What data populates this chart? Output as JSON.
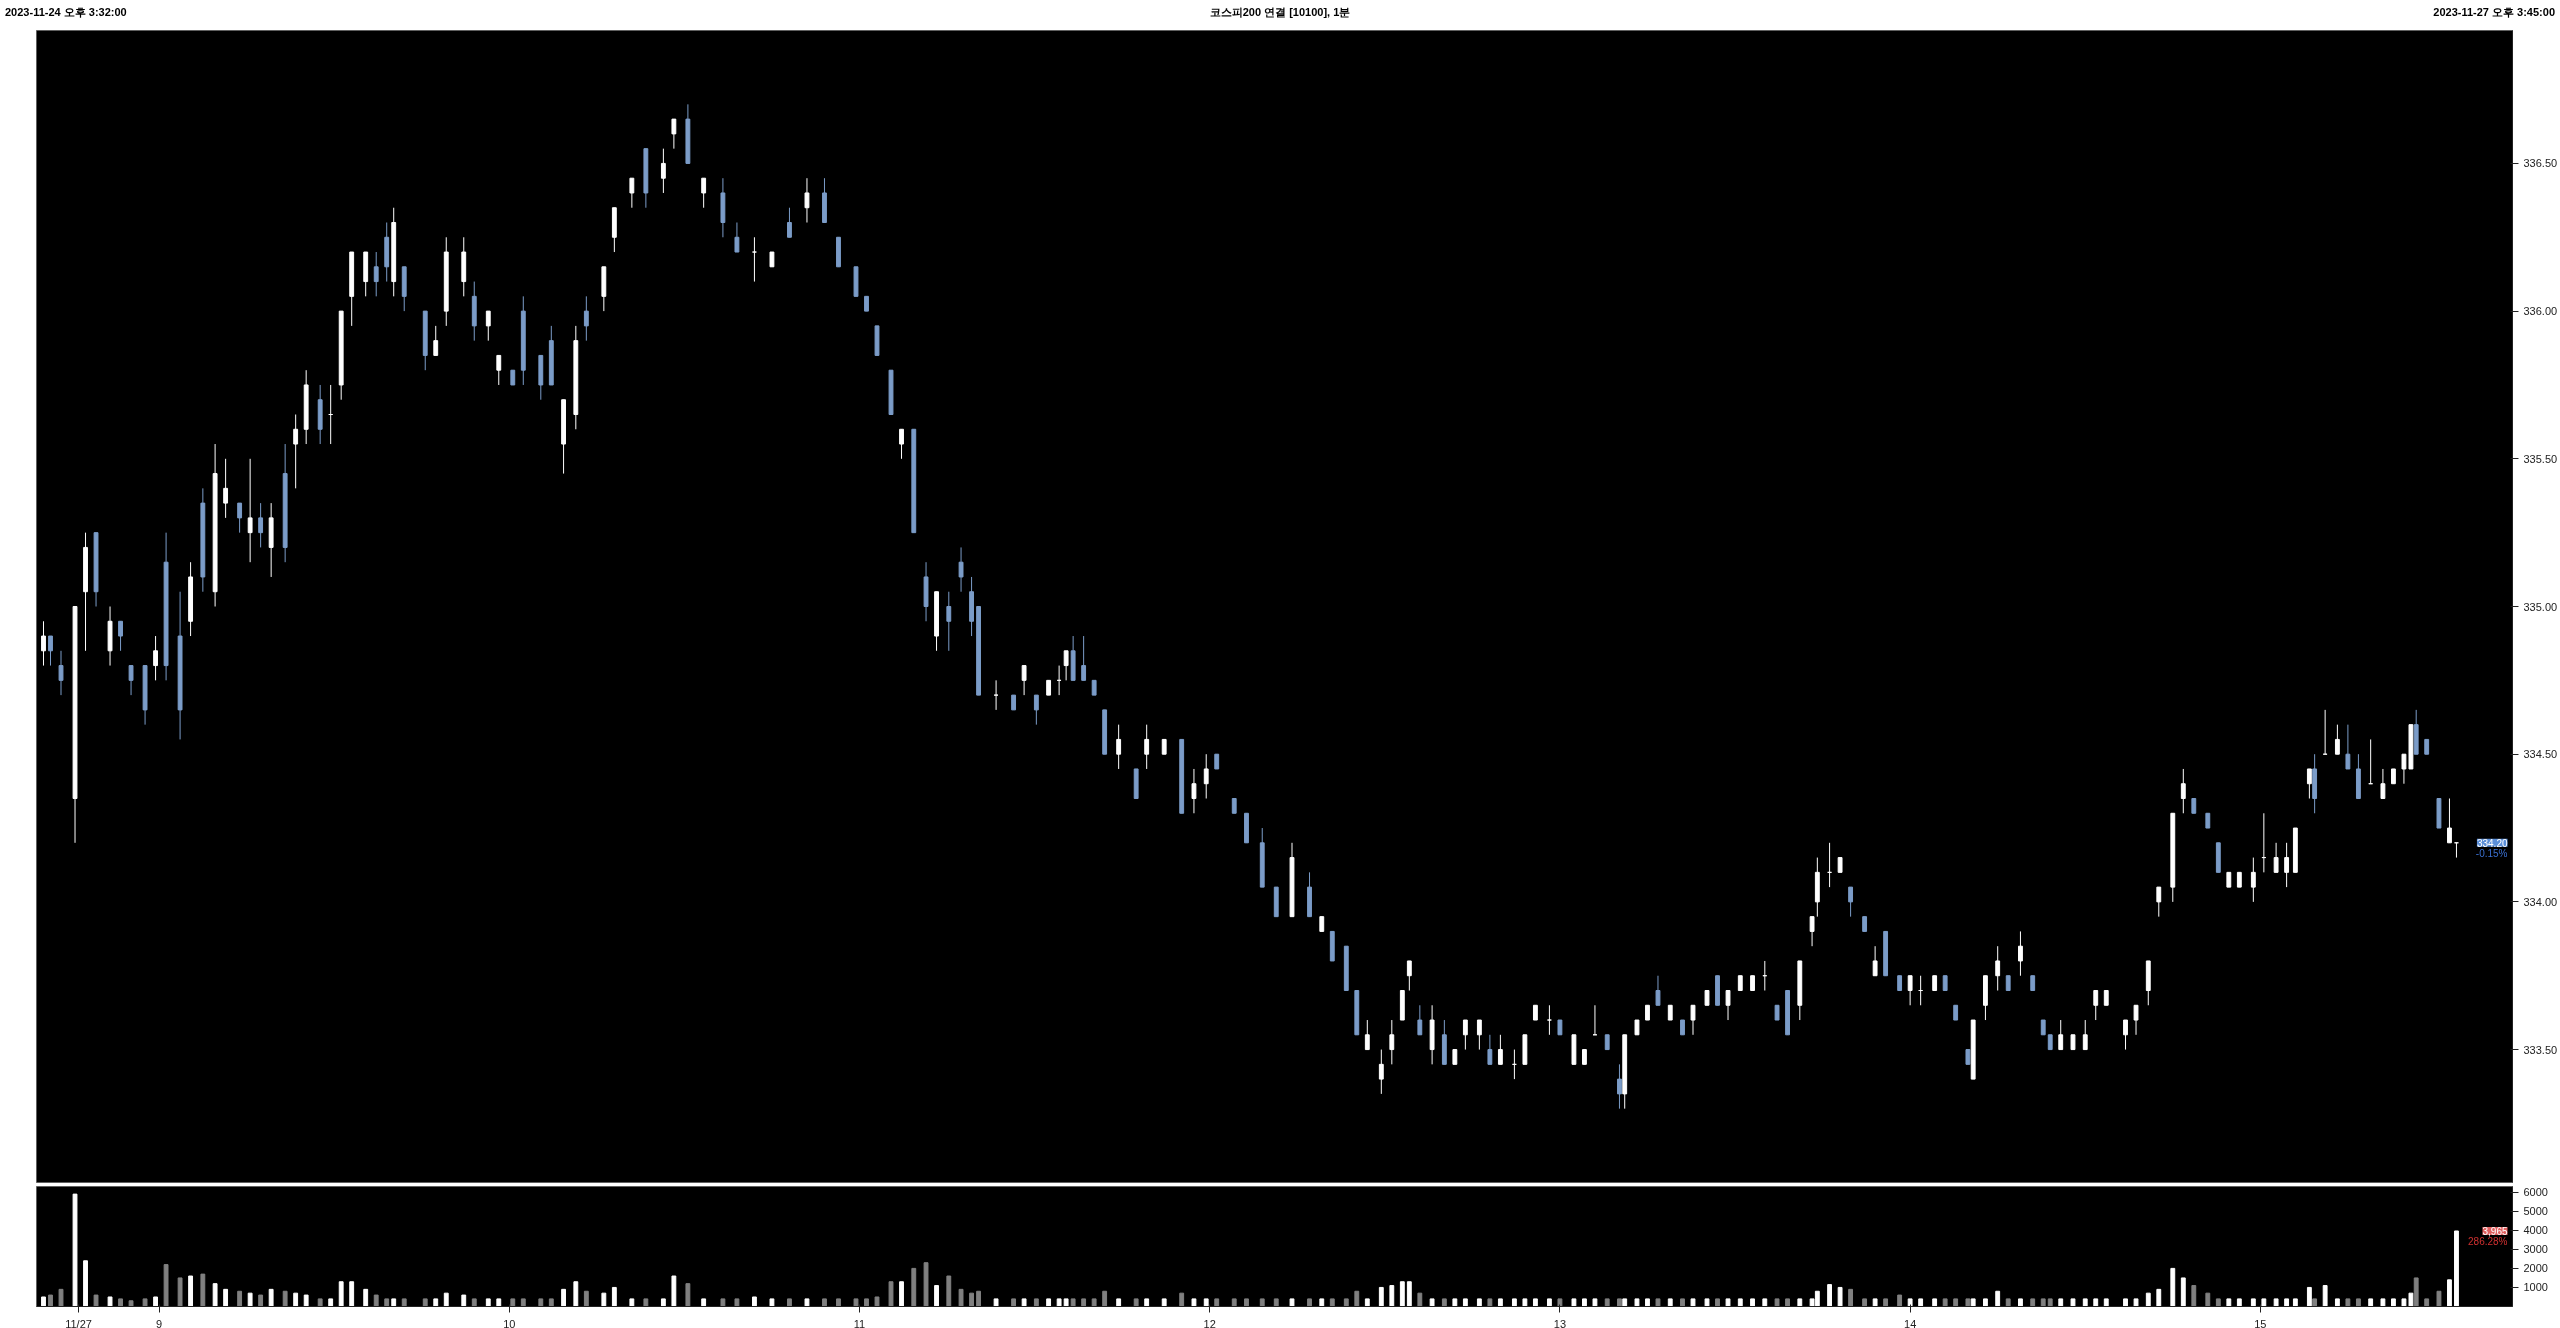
{
  "chart_data": [
    {
      "type": "candlestick",
      "title": "코스피200 연결 [10100], 1분",
      "annotations": [
        "2023-11-24 오후 3:32:00",
        "2023-11-27 오후 3:45:00",
        "334.20",
        "-0.15%"
      ],
      "xlim": [
        8.65,
        15.72
      ],
      "ylim": [
        333.05,
        336.95
      ],
      "yticks": [
        {
          "value": 333.5,
          "label": "333.50"
        },
        {
          "value": 334.0,
          "label": "334.00"
        },
        {
          "value": 334.5,
          "label": "334.50"
        },
        {
          "value": 335.0,
          "label": "335.00"
        },
        {
          "value": 335.5,
          "label": "335.50"
        },
        {
          "value": 336.0,
          "label": "336.00"
        },
        {
          "value": 336.5,
          "label": "336.50"
        }
      ],
      "tick_labels": "y",
      "x": [
        8.67,
        8.69,
        8.72,
        8.76,
        8.79,
        8.82,
        8.86,
        8.89,
        8.92,
        8.96,
        8.99,
        9.02,
        9.06,
        9.09,
        9.125,
        9.16,
        9.19,
        9.23,
        9.26,
        9.29,
        9.32,
        9.36,
        9.39,
        9.42,
        9.46,
        9.49,
        9.52,
        9.55,
        9.59,
        9.62,
        9.65,
        9.67,
        9.7,
        9.76,
        9.79,
        9.82,
        9.87,
        9.9,
        9.94,
        9.97,
        10.01,
        10.04,
        10.09,
        10.12,
        10.155,
        10.19,
        10.22,
        10.27,
        10.3,
        10.35,
        10.39,
        10.44,
        10.47,
        10.51,
        10.555,
        10.61,
        10.65,
        10.7,
        10.75,
        10.8,
        10.85,
        10.9,
        10.94,
        10.99,
        11.02,
        11.05,
        11.09,
        11.12,
        11.155,
        11.19,
        11.22,
        11.255,
        11.29,
        11.32,
        11.34,
        11.39,
        11.44,
        11.47,
        11.505,
        11.54,
        11.57,
        11.59,
        11.61,
        11.64,
        11.67,
        11.7,
        11.74,
        11.79,
        11.82,
        11.87,
        11.92,
        11.955,
        11.99,
        12.02,
        12.07,
        12.105,
        12.15,
        12.19,
        12.235,
        12.285,
        12.32,
        12.35,
        12.39,
        12.42,
        12.45,
        12.49,
        12.52,
        12.55,
        12.57,
        12.6,
        12.635,
        12.67,
        12.7,
        12.73,
        12.77,
        12.8,
        12.83,
        12.87,
        12.9,
        12.93,
        12.97,
        13.0,
        13.04,
        13.07,
        13.1,
        13.135,
        13.17,
        13.185,
        13.22,
        13.25,
        13.28,
        13.315,
        13.35,
        13.38,
        13.42,
        13.45,
        13.48,
        13.515,
        13.55,
        13.585,
        13.62,
        13.65,
        13.685,
        13.72,
        13.735,
        13.77,
        13.8,
        13.83,
        13.87,
        13.9,
        13.93,
        13.97,
        14.0,
        14.03,
        14.07,
        14.1,
        14.13,
        14.165,
        14.18,
        14.215,
        14.25,
        14.28,
        14.315,
        14.35,
        14.38,
        14.4,
        14.43,
        14.465,
        14.5,
        14.53,
        14.56,
        14.615,
        14.645,
        14.68,
        14.71,
        14.75,
        14.78,
        14.81,
        14.85,
        14.88,
        14.91,
        14.94,
        14.98,
        15.01,
        15.045,
        15.075,
        15.1,
        15.14,
        15.155,
        15.185,
        15.22,
        15.25,
        15.28,
        15.315,
        15.35,
        15.38,
        15.41,
        15.43,
        15.445,
        15.475,
        15.51,
        15.54,
        15.56
      ],
      "ohlc": [
        [
          334.85,
          334.95,
          334.8,
          334.9
        ],
        [
          334.9,
          334.9,
          334.8,
          334.85
        ],
        [
          334.8,
          334.85,
          334.7,
          334.75
        ],
        [
          334.35,
          335.0,
          334.2,
          335.0
        ],
        [
          335.05,
          335.25,
          334.85,
          335.2
        ],
        [
          335.25,
          335.25,
          335.0,
          335.05
        ],
        [
          334.85,
          335.0,
          334.8,
          334.95
        ],
        [
          334.95,
          334.95,
          334.85,
          334.9
        ],
        [
          334.8,
          334.8,
          334.7,
          334.75
        ],
        [
          334.8,
          334.8,
          334.6,
          334.65
        ],
        [
          334.8,
          334.9,
          334.75,
          334.85
        ],
        [
          335.15,
          335.25,
          334.75,
          334.8
        ],
        [
          334.9,
          335.05,
          334.55,
          334.65
        ],
        [
          334.95,
          335.15,
          334.9,
          335.1
        ],
        [
          335.35,
          335.4,
          335.05,
          335.1
        ],
        [
          335.05,
          335.55,
          335.0,
          335.45
        ],
        [
          335.35,
          335.5,
          335.3,
          335.4
        ],
        [
          335.35,
          335.35,
          335.25,
          335.3
        ],
        [
          335.25,
          335.5,
          335.15,
          335.3
        ],
        [
          335.3,
          335.35,
          335.2,
          335.25
        ],
        [
          335.2,
          335.35,
          335.1,
          335.3
        ],
        [
          335.45,
          335.55,
          335.15,
          335.2
        ],
        [
          335.55,
          335.65,
          335.4,
          335.6
        ],
        [
          335.6,
          335.8,
          335.55,
          335.75
        ],
        [
          335.7,
          335.75,
          335.55,
          335.6
        ],
        [
          335.65,
          335.75,
          335.55,
          335.65
        ],
        [
          335.75,
          336.0,
          335.7,
          336.0
        ],
        [
          336.05,
          336.2,
          335.95,
          336.2
        ],
        [
          336.1,
          336.2,
          336.05,
          336.2
        ],
        [
          336.15,
          336.2,
          336.05,
          336.1
        ],
        [
          336.25,
          336.3,
          336.1,
          336.15
        ],
        [
          336.1,
          336.35,
          336.05,
          336.3
        ],
        [
          336.15,
          336.15,
          336.0,
          336.05
        ],
        [
          336.0,
          336.0,
          335.8,
          335.85
        ],
        [
          335.85,
          335.95,
          335.85,
          335.9
        ],
        [
          336.0,
          336.25,
          335.95,
          336.2
        ],
        [
          336.1,
          336.25,
          336.05,
          336.2
        ],
        [
          336.05,
          336.1,
          335.9,
          335.95
        ],
        [
          335.95,
          336.0,
          335.9,
          336.0
        ],
        [
          335.8,
          335.85,
          335.75,
          335.85
        ],
        [
          335.8,
          335.8,
          335.75,
          335.75
        ],
        [
          336.0,
          336.05,
          335.75,
          335.8
        ],
        [
          335.85,
          335.85,
          335.7,
          335.75
        ],
        [
          335.9,
          335.95,
          335.75,
          335.75
        ],
        [
          335.55,
          335.7,
          335.45,
          335.7
        ],
        [
          335.65,
          335.95,
          335.6,
          335.9
        ],
        [
          336.0,
          336.05,
          335.9,
          335.95
        ],
        [
          336.05,
          336.15,
          336.0,
          336.15
        ],
        [
          336.25,
          336.35,
          336.2,
          336.35
        ],
        [
          336.4,
          336.45,
          336.35,
          336.45
        ],
        [
          336.55,
          336.55,
          336.35,
          336.4
        ],
        [
          336.45,
          336.55,
          336.4,
          336.5
        ],
        [
          336.6,
          336.65,
          336.55,
          336.65
        ],
        [
          336.65,
          336.7,
          336.5,
          336.5
        ],
        [
          336.4,
          336.45,
          336.35,
          336.45
        ],
        [
          336.4,
          336.45,
          336.25,
          336.3
        ],
        [
          336.25,
          336.3,
          336.2,
          336.2
        ],
        [
          336.2,
          336.25,
          336.1,
          336.2
        ],
        [
          336.15,
          336.2,
          336.15,
          336.2
        ],
        [
          336.3,
          336.35,
          336.25,
          336.25
        ],
        [
          336.35,
          336.45,
          336.3,
          336.4
        ],
        [
          336.4,
          336.45,
          336.3,
          336.3
        ],
        [
          336.25,
          336.25,
          336.15,
          336.15
        ],
        [
          336.15,
          336.15,
          336.05,
          336.05
        ],
        [
          336.05,
          336.05,
          336.0,
          336.0
        ],
        [
          335.95,
          335.95,
          335.85,
          335.85
        ],
        [
          335.8,
          335.8,
          335.65,
          335.65
        ],
        [
          335.55,
          335.6,
          335.5,
          335.6
        ],
        [
          335.6,
          335.6,
          335.25,
          335.25
        ],
        [
          335.1,
          335.15,
          334.95,
          335.0
        ],
        [
          334.9,
          335.05,
          334.85,
          335.05
        ],
        [
          335.0,
          335.05,
          334.85,
          334.95
        ],
        [
          335.15,
          335.2,
          335.05,
          335.1
        ],
        [
          335.05,
          335.1,
          334.9,
          334.95
        ],
        [
          335.0,
          335.0,
          334.7,
          334.7
        ],
        [
          334.7,
          334.75,
          334.65,
          334.7
        ],
        [
          334.7,
          334.7,
          334.65,
          334.65
        ],
        [
          334.75,
          334.8,
          334.7,
          334.8
        ],
        [
          334.7,
          334.7,
          334.6,
          334.65
        ],
        [
          334.7,
          334.75,
          334.7,
          334.75
        ],
        [
          334.75,
          334.8,
          334.7,
          334.75
        ],
        [
          334.8,
          334.85,
          334.75,
          334.85
        ],
        [
          334.85,
          334.9,
          334.75,
          334.75
        ],
        [
          334.8,
          334.9,
          334.75,
          334.75
        ],
        [
          334.75,
          334.75,
          334.7,
          334.7
        ],
        [
          334.65,
          334.65,
          334.5,
          334.5
        ],
        [
          334.5,
          334.6,
          334.45,
          334.55
        ],
        [
          334.45,
          334.45,
          334.35,
          334.35
        ],
        [
          334.5,
          334.6,
          334.45,
          334.55
        ],
        [
          334.5,
          334.55,
          334.5,
          334.55
        ],
        [
          334.55,
          334.55,
          334.3,
          334.3
        ],
        [
          334.35,
          334.45,
          334.3,
          334.4
        ],
        [
          334.4,
          334.5,
          334.35,
          334.45
        ],
        [
          334.5,
          334.5,
          334.45,
          334.45
        ],
        [
          334.35,
          334.35,
          334.3,
          334.3
        ],
        [
          334.3,
          334.3,
          334.2,
          334.2
        ],
        [
          334.2,
          334.25,
          334.05,
          334.05
        ],
        [
          334.05,
          334.05,
          333.95,
          333.95
        ],
        [
          333.95,
          334.2,
          333.95,
          334.15
        ],
        [
          334.05,
          334.1,
          333.95,
          333.95
        ],
        [
          333.9,
          333.95,
          333.9,
          333.95
        ],
        [
          333.9,
          333.9,
          333.8,
          333.8
        ],
        [
          333.85,
          333.85,
          333.7,
          333.7
        ],
        [
          333.7,
          333.7,
          333.55,
          333.55
        ],
        [
          333.5,
          333.6,
          333.5,
          333.55
        ],
        [
          333.4,
          333.5,
          333.35,
          333.45
        ],
        [
          333.5,
          333.6,
          333.45,
          333.55
        ],
        [
          333.6,
          333.7,
          333.6,
          333.7
        ],
        [
          333.75,
          333.8,
          333.7,
          333.8
        ],
        [
          333.6,
          333.65,
          333.55,
          333.55
        ],
        [
          333.5,
          333.65,
          333.45,
          333.6
        ],
        [
          333.55,
          333.6,
          333.45,
          333.45
        ],
        [
          333.45,
          333.5,
          333.45,
          333.5
        ],
        [
          333.55,
          333.6,
          333.5,
          333.6
        ],
        [
          333.55,
          333.6,
          333.5,
          333.6
        ],
        [
          333.5,
          333.55,
          333.45,
          333.45
        ],
        [
          333.45,
          333.55,
          333.45,
          333.5
        ],
        [
          333.45,
          333.5,
          333.4,
          333.45
        ],
        [
          333.45,
          333.55,
          333.45,
          333.55
        ],
        [
          333.6,
          333.65,
          333.6,
          333.65
        ],
        [
          333.6,
          333.65,
          333.55,
          333.6
        ],
        [
          333.6,
          333.6,
          333.55,
          333.55
        ],
        [
          333.45,
          333.55,
          333.45,
          333.55
        ],
        [
          333.45,
          333.5,
          333.45,
          333.5
        ],
        [
          333.55,
          333.65,
          333.55,
          333.55
        ],
        [
          333.55,
          333.55,
          333.5,
          333.5
        ],
        [
          333.4,
          333.45,
          333.3,
          333.35
        ],
        [
          333.35,
          333.55,
          333.3,
          333.55
        ],
        [
          333.55,
          333.6,
          333.55,
          333.6
        ],
        [
          333.6,
          333.65,
          333.6,
          333.65
        ],
        [
          333.7,
          333.75,
          333.65,
          333.65
        ],
        [
          333.6,
          333.65,
          333.6,
          333.65
        ],
        [
          333.6,
          333.6,
          333.55,
          333.55
        ],
        [
          333.6,
          333.65,
          333.55,
          333.65
        ],
        [
          333.65,
          333.7,
          333.65,
          333.7
        ],
        [
          333.75,
          333.75,
          333.65,
          333.65
        ],
        [
          333.65,
          333.7,
          333.6,
          333.7
        ],
        [
          333.7,
          333.75,
          333.7,
          333.75
        ],
        [
          333.7,
          333.75,
          333.7,
          333.75
        ],
        [
          333.75,
          333.8,
          333.7,
          333.75
        ],
        [
          333.65,
          333.65,
          333.6,
          333.6
        ],
        [
          333.7,
          333.7,
          333.55,
          333.55
        ],
        [
          333.65,
          333.8,
          333.6,
          333.8
        ],
        [
          333.9,
          333.95,
          333.85,
          333.95
        ],
        [
          334.0,
          334.15,
          333.95,
          334.1
        ],
        [
          334.1,
          334.2,
          334.05,
          334.1
        ],
        [
          334.1,
          334.15,
          334.1,
          334.15
        ],
        [
          334.05,
          334.05,
          333.95,
          334.0
        ],
        [
          333.95,
          333.95,
          333.9,
          333.9
        ],
        [
          333.75,
          333.85,
          333.75,
          333.8
        ],
        [
          333.9,
          333.9,
          333.75,
          333.75
        ],
        [
          333.75,
          333.75,
          333.7,
          333.7
        ],
        [
          333.7,
          333.75,
          333.65,
          333.75
        ],
        [
          333.7,
          333.75,
          333.65,
          333.7
        ],
        [
          333.7,
          333.75,
          333.7,
          333.75
        ],
        [
          333.75,
          333.75,
          333.7,
          333.7
        ],
        [
          333.65,
          333.65,
          333.6,
          333.6
        ],
        [
          333.5,
          333.5,
          333.45,
          333.45
        ],
        [
          333.4,
          333.6,
          333.4,
          333.6
        ],
        [
          333.65,
          333.75,
          333.6,
          333.75
        ],
        [
          333.75,
          333.85,
          333.7,
          333.8
        ],
        [
          333.75,
          333.75,
          333.7,
          333.7
        ],
        [
          333.8,
          333.9,
          333.75,
          333.85
        ],
        [
          333.75,
          333.75,
          333.7,
          333.7
        ],
        [
          333.6,
          333.6,
          333.55,
          333.55
        ],
        [
          333.55,
          333.55,
          333.5,
          333.5
        ],
        [
          333.5,
          333.6,
          333.5,
          333.55
        ],
        [
          333.5,
          333.55,
          333.5,
          333.55
        ],
        [
          333.5,
          333.6,
          333.5,
          333.55
        ],
        [
          333.65,
          333.7,
          333.6,
          333.7
        ],
        [
          333.65,
          333.7,
          333.65,
          333.7
        ],
        [
          333.55,
          333.6,
          333.5,
          333.6
        ],
        [
          333.6,
          333.65,
          333.55,
          333.65
        ],
        [
          333.7,
          333.8,
          333.65,
          333.8
        ],
        [
          334.0,
          334.05,
          333.95,
          334.05
        ],
        [
          334.05,
          334.3,
          334.0,
          334.3
        ],
        [
          334.35,
          334.45,
          334.3,
          334.4
        ],
        [
          334.35,
          334.35,
          334.3,
          334.3
        ],
        [
          334.3,
          334.3,
          334.25,
          334.25
        ],
        [
          334.2,
          334.2,
          334.1,
          334.1
        ],
        [
          334.05,
          334.1,
          334.05,
          334.1
        ],
        [
          334.05,
          334.1,
          334.05,
          334.1
        ],
        [
          334.05,
          334.15,
          334.0,
          334.1
        ],
        [
          334.15,
          334.3,
          334.1,
          334.15
        ],
        [
          334.1,
          334.2,
          334.1,
          334.15
        ],
        [
          334.1,
          334.2,
          334.05,
          334.15
        ],
        [
          334.1,
          334.25,
          334.1,
          334.25
        ],
        [
          334.4,
          334.45,
          334.35,
          334.45
        ],
        [
          334.45,
          334.5,
          334.3,
          334.35
        ],
        [
          334.5,
          334.65,
          334.5,
          334.5
        ],
        [
          334.5,
          334.6,
          334.5,
          334.55
        ],
        [
          334.5,
          334.6,
          334.45,
          334.45
        ],
        [
          334.45,
          334.5,
          334.35,
          334.35
        ],
        [
          334.4,
          334.55,
          334.4,
          334.4
        ],
        [
          334.35,
          334.45,
          334.35,
          334.4
        ],
        [
          334.4,
          334.45,
          334.4,
          334.45
        ],
        [
          334.45,
          334.5,
          334.4,
          334.5
        ],
        [
          334.45,
          334.6,
          334.45,
          334.6
        ],
        [
          334.6,
          334.65,
          334.5,
          334.5
        ],
        [
          334.55,
          334.55,
          334.5,
          334.5
        ],
        [
          334.35,
          334.35,
          334.25,
          334.25
        ],
        [
          334.2,
          334.35,
          334.2,
          334.25
        ],
        [
          334.2,
          334.2,
          334.15,
          334.2
        ]
      ],
      "colors": [
        "#ffffff",
        "#7b9cc8",
        "#7b9cc8",
        "#ffffff",
        "#ffffff",
        "#7b9cc8",
        "#ffffff",
        "#7b9cc8",
        "#7b9cc8",
        "#7b9cc8",
        "#ffffff",
        "#7b9cc8",
        "#7b9cc8",
        "#ffffff",
        "#7b9cc8",
        "#ffffff",
        "#ffffff",
        "#7b9cc8",
        "#ffffff",
        "#7b9cc8",
        "#ffffff",
        "#7b9cc8",
        "#ffffff",
        "#ffffff",
        "#7b9cc8",
        "#ffffff",
        "#ffffff",
        "#ffffff",
        "#ffffff",
        "#7b9cc8",
        "#7b9cc8",
        "#ffffff",
        "#7b9cc8",
        "#7b9cc8",
        "#ffffff",
        "#ffffff",
        "#ffffff",
        "#7b9cc8",
        "#ffffff",
        "#ffffff",
        "#7b9cc8",
        "#7b9cc8",
        "#7b9cc8",
        "#7b9cc8",
        "#ffffff",
        "#ffffff",
        "#7b9cc8",
        "#ffffff",
        "#ffffff",
        "#ffffff",
        "#7b9cc8",
        "#ffffff",
        "#ffffff",
        "#7b9cc8",
        "#ffffff",
        "#7b9cc8",
        "#7b9cc8",
        "#ffffff",
        "#ffffff",
        "#7b9cc8",
        "#ffffff",
        "#7b9cc8",
        "#7b9cc8",
        "#7b9cc8",
        "#7b9cc8",
        "#7b9cc8",
        "#7b9cc8",
        "#ffffff",
        "#7b9cc8",
        "#7b9cc8",
        "#ffffff",
        "#7b9cc8",
        "#7b9cc8",
        "#7b9cc8",
        "#7b9cc8",
        "#ffffff",
        "#7b9cc8",
        "#ffffff",
        "#7b9cc8",
        "#ffffff",
        "#ffffff",
        "#ffffff",
        "#7b9cc8",
        "#7b9cc8",
        "#7b9cc8",
        "#7b9cc8",
        "#ffffff",
        "#7b9cc8",
        "#ffffff",
        "#ffffff",
        "#7b9cc8",
        "#ffffff",
        "#ffffff",
        "#7b9cc8",
        "#7b9cc8",
        "#7b9cc8",
        "#7b9cc8",
        "#7b9cc8",
        "#ffffff",
        "#7b9cc8",
        "#ffffff",
        "#7b9cc8",
        "#7b9cc8",
        "#7b9cc8",
        "#ffffff",
        "#ffffff",
        "#ffffff",
        "#ffffff",
        "#ffffff",
        "#7b9cc8",
        "#ffffff",
        "#7b9cc8",
        "#ffffff",
        "#ffffff",
        "#ffffff",
        "#7b9cc8",
        "#ffffff",
        "#ffffff",
        "#ffffff",
        "#ffffff",
        "#ffffff",
        "#7b9cc8",
        "#ffffff",
        "#ffffff",
        "#ffffff",
        "#7b9cc8",
        "#7b9cc8",
        "#ffffff",
        "#ffffff",
        "#ffffff",
        "#7b9cc8",
        "#ffffff",
        "#7b9cc8",
        "#ffffff",
        "#ffffff",
        "#7b9cc8",
        "#ffffff",
        "#ffffff",
        "#ffffff",
        "#ffffff",
        "#7b9cc8",
        "#7b9cc8",
        "#ffffff",
        "#ffffff",
        "#ffffff",
        "#ffffff",
        "#ffffff",
        "#7b9cc8",
        "#7b9cc8",
        "#ffffff",
        "#7b9cc8",
        "#7b9cc8",
        "#ffffff",
        "#ffffff",
        "#ffffff",
        "#7b9cc8",
        "#7b9cc8",
        "#7b9cc8",
        "#ffffff",
        "#ffffff",
        "#ffffff",
        "#7b9cc8",
        "#ffffff",
        "#7b9cc8",
        "#7b9cc8",
        "#7b9cc8",
        "#ffffff",
        "#ffffff",
        "#ffffff",
        "#ffffff",
        "#ffffff",
        "#ffffff",
        "#ffffff",
        "#ffffff",
        "#ffffff",
        "#ffffff",
        "#ffffff",
        "#7b9cc8",
        "#7b9cc8",
        "#7b9cc8",
        "#ffffff",
        "#ffffff",
        "#ffffff",
        "#ffffff",
        "#ffffff",
        "#ffffff",
        "#ffffff",
        "#ffffff",
        "#7b9cc8",
        "#ffffff",
        "#ffffff",
        "#7b9cc8",
        "#7b9cc8",
        "#ffffff",
        "#ffffff",
        "#ffffff",
        "#ffffff",
        "#ffffff",
        "#7b9cc8",
        "#7b9cc8",
        "#7b9cc8",
        "#ffffff",
        "#ffffff"
      ]
    },
    {
      "type": "bar",
      "annotations": [
        "3,965",
        "286.28%"
      ],
      "xlim": [
        8.65,
        15.72
      ],
      "xticks": [
        {
          "value": 8.77,
          "label": "11/27"
        },
        9,
        10,
        11,
        12,
        13,
        14,
        15
      ],
      "ylim": [
        0,
        6300
      ],
      "yticks": [
        1000,
        2000,
        3000,
        4000,
        5000,
        6000
      ],
      "x": [
        8.67,
        8.69,
        8.72,
        8.76,
        8.79,
        8.82,
        8.86,
        8.89,
        8.92,
        8.96,
        8.99,
        9.02,
        9.06,
        9.09,
        9.125,
        9.16,
        9.19,
        9.23,
        9.26,
        9.29,
        9.32,
        9.36,
        9.39,
        9.42,
        9.46,
        9.49,
        9.52,
        9.55,
        9.59,
        9.62,
        9.65,
        9.67,
        9.7,
        9.76,
        9.79,
        9.82,
        9.87,
        9.9,
        9.94,
        9.97,
        10.01,
        10.04,
        10.09,
        10.12,
        10.155,
        10.19,
        10.22,
        10.27,
        10.3,
        10.35,
        10.39,
        10.44,
        10.47,
        10.51,
        10.555,
        10.61,
        10.65,
        10.7,
        10.75,
        10.8,
        10.85,
        10.9,
        10.94,
        10.99,
        11.02,
        11.05,
        11.09,
        11.12,
        11.155,
        11.19,
        11.22,
        11.255,
        11.29,
        11.32,
        11.34,
        11.39,
        11.44,
        11.47,
        11.505,
        11.54,
        11.57,
        11.59,
        11.61,
        11.64,
        11.67,
        11.7,
        11.74,
        11.79,
        11.82,
        11.87,
        11.92,
        11.955,
        11.99,
        12.02,
        12.07,
        12.105,
        12.15,
        12.19,
        12.235,
        12.285,
        12.32,
        12.35,
        12.39,
        12.42,
        12.45,
        12.49,
        12.52,
        12.55,
        12.57,
        12.6,
        12.635,
        12.67,
        12.7,
        12.73,
        12.77,
        12.8,
        12.83,
        12.87,
        12.9,
        12.93,
        12.97,
        13.0,
        13.04,
        13.07,
        13.1,
        13.135,
        13.17,
        13.185,
        13.22,
        13.25,
        13.28,
        13.315,
        13.35,
        13.38,
        13.42,
        13.45,
        13.48,
        13.515,
        13.55,
        13.585,
        13.62,
        13.65,
        13.685,
        13.72,
        13.735,
        13.77,
        13.8,
        13.83,
        13.87,
        13.9,
        13.93,
        13.97,
        14.0,
        14.03,
        14.07,
        14.1,
        14.13,
        14.165,
        14.18,
        14.215,
        14.25,
        14.28,
        14.315,
        14.35,
        14.38,
        14.4,
        14.43,
        14.465,
        14.5,
        14.53,
        14.56,
        14.615,
        14.645,
        14.68,
        14.71,
        14.75,
        14.78,
        14.81,
        14.85,
        14.88,
        14.91,
        14.94,
        14.98,
        15.01,
        15.045,
        15.075,
        15.1,
        15.14,
        15.155,
        15.185,
        15.22,
        15.25,
        15.28,
        15.315,
        15.35,
        15.38,
        15.41,
        15.43,
        15.445,
        15.475,
        15.51,
        15.54,
        15.56
      ],
      "values": [
        500,
        600,
        900,
        5900,
        2400,
        600,
        500,
        400,
        300,
        400,
        500,
        2200,
        1500,
        1600,
        1700,
        1200,
        900,
        800,
        700,
        600,
        900,
        800,
        700,
        600,
        400,
        400,
        1300,
        1300,
        900,
        600,
        400,
        400,
        400,
        400,
        400,
        700,
        600,
        400,
        400,
        400,
        400,
        400,
        400,
        400,
        900,
        1300,
        800,
        700,
        1000,
        400,
        400,
        400,
        1600,
        1200,
        400,
        400,
        400,
        500,
        400,
        400,
        400,
        400,
        400,
        400,
        400,
        500,
        1300,
        1300,
        2000,
        2300,
        1100,
        1600,
        900,
        700,
        800,
        400,
        400,
        400,
        400,
        400,
        400,
        400,
        400,
        400,
        400,
        800,
        400,
        400,
        400,
        400,
        700,
        400,
        400,
        400,
        400,
        400,
        400,
        400,
        400,
        400,
        400,
        400,
        400,
        800,
        400,
        1000,
        1100,
        1300,
        1300,
        700,
        400,
        400,
        400,
        400,
        400,
        400,
        400,
        400,
        400,
        400,
        400,
        400,
        400,
        400,
        400,
        400,
        400,
        400,
        400,
        400,
        400,
        400,
        400,
        400,
        400,
        400,
        400,
        400,
        400,
        400,
        400,
        400,
        400,
        400,
        800,
        1150,
        1000,
        900,
        400,
        400,
        400,
        600,
        400,
        400,
        400,
        400,
        400,
        400,
        400,
        400,
        800,
        400,
        400,
        400,
        400,
        400,
        400,
        400,
        400,
        400,
        400,
        400,
        400,
        700,
        900,
        2000,
        1500,
        1100,
        700,
        400,
        400,
        400,
        400,
        400,
        400,
        400,
        400,
        1000,
        400,
        1100,
        400,
        400,
        400,
        400,
        400,
        400,
        400,
        700,
        1500,
        400,
        800,
        1400,
        3965
      ],
      "colors": [
        "#ffffff",
        "#808080",
        "#808080",
        "#ffffff",
        "#ffffff",
        "#808080",
        "#ffffff",
        "#808080",
        "#808080",
        "#808080",
        "#ffffff",
        "#808080",
        "#808080",
        "#ffffff",
        "#808080",
        "#ffffff",
        "#ffffff",
        "#808080",
        "#ffffff",
        "#808080",
        "#ffffff",
        "#808080",
        "#ffffff",
        "#ffffff",
        "#808080",
        "#ffffff",
        "#ffffff",
        "#ffffff",
        "#ffffff",
        "#808080",
        "#808080",
        "#ffffff",
        "#808080",
        "#808080",
        "#ffffff",
        "#ffffff",
        "#ffffff",
        "#808080",
        "#ffffff",
        "#ffffff",
        "#808080",
        "#808080",
        "#808080",
        "#808080",
        "#ffffff",
        "#ffffff",
        "#808080",
        "#ffffff",
        "#ffffff",
        "#ffffff",
        "#808080",
        "#ffffff",
        "#ffffff",
        "#808080",
        "#ffffff",
        "#808080",
        "#808080",
        "#ffffff",
        "#ffffff",
        "#808080",
        "#ffffff",
        "#808080",
        "#808080",
        "#808080",
        "#808080",
        "#808080",
        "#808080",
        "#ffffff",
        "#808080",
        "#808080",
        "#ffffff",
        "#808080",
        "#808080",
        "#808080",
        "#808080",
        "#ffffff",
        "#808080",
        "#ffffff",
        "#808080",
        "#ffffff",
        "#ffffff",
        "#ffffff",
        "#808080",
        "#808080",
        "#808080",
        "#808080",
        "#ffffff",
        "#808080",
        "#ffffff",
        "#ffffff",
        "#808080",
        "#ffffff",
        "#ffffff",
        "#808080",
        "#808080",
        "#808080",
        "#808080",
        "#808080",
        "#ffffff",
        "#808080",
        "#ffffff",
        "#808080",
        "#808080",
        "#808080",
        "#ffffff",
        "#ffffff",
        "#ffffff",
        "#ffffff",
        "#ffffff",
        "#808080",
        "#ffffff",
        "#808080",
        "#ffffff",
        "#ffffff",
        "#ffffff",
        "#808080",
        "#ffffff",
        "#ffffff",
        "#ffffff",
        "#ffffff",
        "#ffffff",
        "#808080",
        "#ffffff",
        "#ffffff",
        "#ffffff",
        "#808080",
        "#808080",
        "#ffffff",
        "#ffffff",
        "#ffffff",
        "#808080",
        "#ffffff",
        "#808080",
        "#ffffff",
        "#ffffff",
        "#808080",
        "#ffffff",
        "#ffffff",
        "#ffffff",
        "#ffffff",
        "#808080",
        "#808080",
        "#ffffff",
        "#ffffff",
        "#ffffff",
        "#ffffff",
        "#ffffff",
        "#808080",
        "#808080",
        "#ffffff",
        "#808080",
        "#808080",
        "#ffffff",
        "#ffffff",
        "#ffffff",
        "#808080",
        "#808080",
        "#808080",
        "#ffffff",
        "#ffffff",
        "#ffffff",
        "#808080",
        "#ffffff",
        "#808080",
        "#808080",
        "#808080",
        "#ffffff",
        "#ffffff",
        "#ffffff",
        "#ffffff",
        "#ffffff",
        "#ffffff",
        "#ffffff",
        "#ffffff",
        "#ffffff",
        "#ffffff",
        "#ffffff",
        "#808080",
        "#808080",
        "#808080",
        "#ffffff",
        "#ffffff",
        "#ffffff",
        "#ffffff",
        "#ffffff",
        "#ffffff",
        "#ffffff",
        "#ffffff",
        "#808080",
        "#ffffff",
        "#ffffff",
        "#808080",
        "#808080",
        "#ffffff",
        "#ffffff",
        "#ffffff",
        "#ffffff",
        "#ffffff",
        "#808080",
        "#808080",
        "#808080",
        "#ffffff",
        "#ffffff"
      ]
    }
  ]
}
